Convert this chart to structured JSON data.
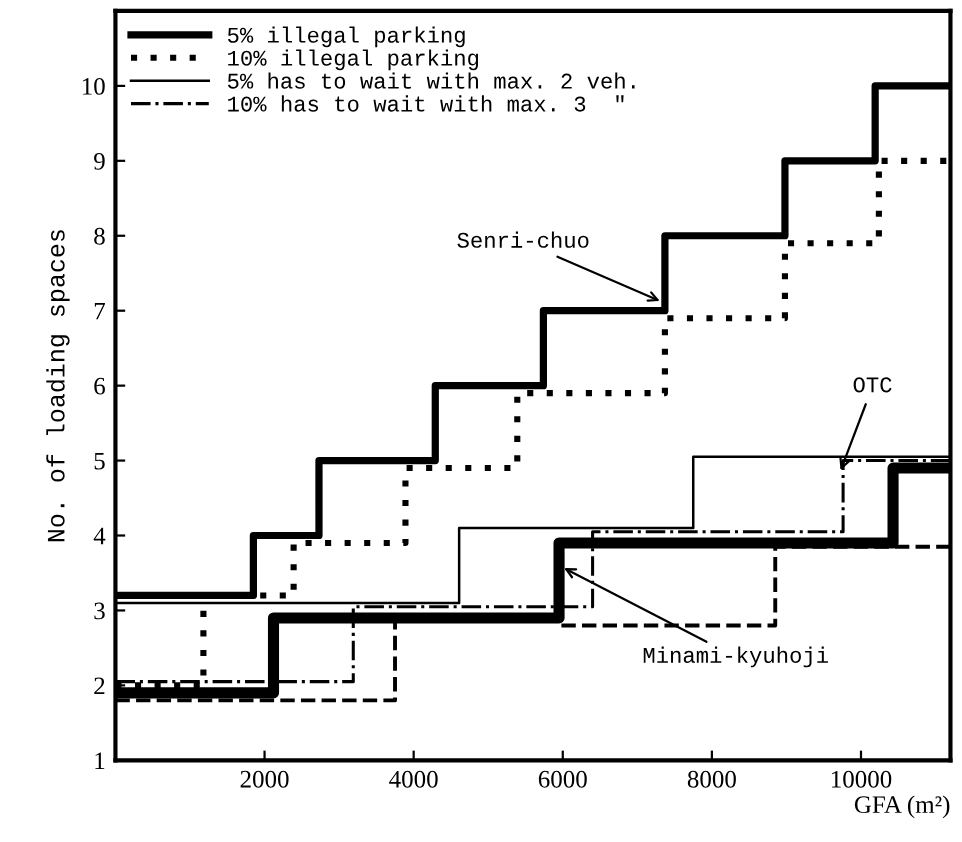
{
  "chart_data": {
    "type": "step",
    "xlabel": "GFA (m²)",
    "ylabel": "No. of loading spaces",
    "xlim": [
      0,
      11200
    ],
    "ylim": [
      1,
      11
    ],
    "xticks": [
      2000,
      4000,
      6000,
      8000,
      10000
    ],
    "yticks": [
      1,
      2,
      3,
      4,
      5,
      6,
      7,
      8,
      9,
      10
    ],
    "grid": false,
    "legend": "top left",
    "series": [
      {
        "name": "5% illegal parking",
        "color": "#000000",
        "line_style": "solid",
        "x": [
          0,
          1850,
          2730,
          4290,
          5740,
          7370,
          8980,
          10190,
          11200
        ],
        "values": [
          3.2,
          4,
          5,
          6,
          7,
          8,
          9,
          10,
          10
        ]
      },
      {
        "name": "10% illegal parking",
        "color": "#000000",
        "line_style": "dotted",
        "x": [
          0,
          1180,
          2390,
          3890,
          5390,
          7370,
          8980,
          10240,
          11200
        ],
        "values": [
          2,
          3.2,
          3.9,
          4.9,
          5.9,
          6.9,
          7.9,
          9,
          9
        ]
      },
      {
        "name": "5% has to wait with max. 2 veh.",
        "color": "#000000",
        "line_style": "solid",
        "x": [
          0,
          4610,
          7750,
          11200
        ],
        "values": [
          3.1,
          4.1,
          5.05,
          5.05
        ]
      },
      {
        "name": "10% has to wait with max. 3  \"",
        "color": "#000000",
        "line_style": "dashdot",
        "x": [
          0,
          3190,
          6400,
          9760,
          11200
        ],
        "values": [
          2.05,
          3.05,
          4.05,
          5.0,
          5.0
        ]
      },
      {
        "color": "#000000",
        "line_style": "solid",
        "x": [
          0,
          2120,
          5950,
          10430,
          11200
        ],
        "values": [
          1.9,
          2.9,
          3.9,
          4.9,
          4.9
        ]
      },
      {
        "color": "#000000",
        "line_style": "dashed",
        "x": [
          0,
          3750,
          5950,
          8850,
          11200
        ],
        "values": [
          1.8,
          2.9,
          2.8,
          3.85,
          3.85
        ]
      }
    ],
    "annotations": [
      {
        "text": "Senri-chuo",
        "x": 7370,
        "y": 7.1
      },
      {
        "text": "OTC",
        "x": 9700,
        "y": 4.8
      },
      {
        "text": "Minami-kyuhoji",
        "x": 5950,
        "y": 3.6
      }
    ]
  }
}
